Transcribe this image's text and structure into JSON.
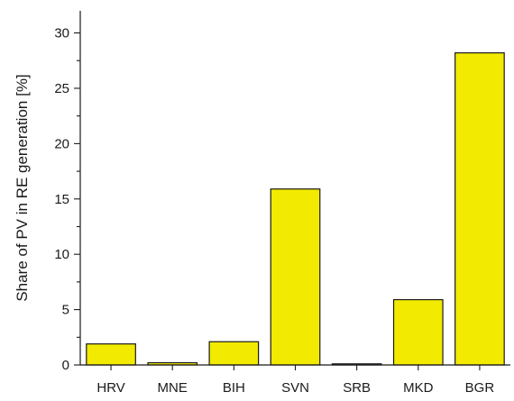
{
  "chart_data": {
    "type": "bar",
    "title": "",
    "xlabel": "",
    "ylabel": "Share of PV in RE generation [%]",
    "categories": [
      "HRV",
      "MNE",
      "BIH",
      "SVN",
      "SRB",
      "MKD",
      "BGR"
    ],
    "values": [
      1.9,
      0.2,
      2.1,
      15.9,
      0.1,
      5.9,
      28.2
    ],
    "ylim": [
      0,
      32
    ],
    "yticks": [
      0,
      5,
      10,
      15,
      20,
      25,
      30
    ],
    "grid": false,
    "legend": "none",
    "bar_color": "#f2ea00",
    "bar_edge_color": "#1a1a1a"
  }
}
